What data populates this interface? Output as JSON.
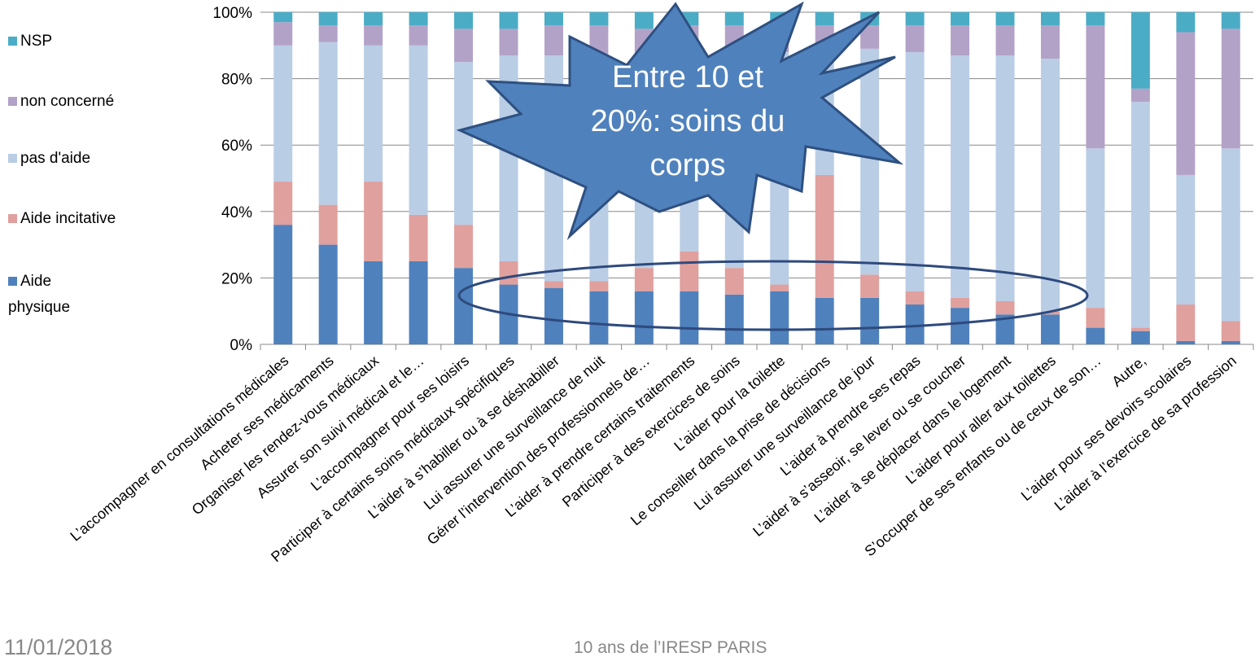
{
  "chart_data": {
    "type": "stacked_bar",
    "categories": [
      "L’accompagner en consultations médicales",
      "Acheter  ses médicaments",
      "Organiser les rendez-vous médicaux",
      "Assurer son suivi médical et le…",
      "L’accompagner pour ses loisirs",
      "Participer  à certains soins médicaux spécifiques",
      "L’aider à s’habiller ou à se déshabiller",
      "Lui assurer une surveillance de nuit",
      "Gérer l’intervention  des professionnels de…",
      "L’aider à prendre  certains traitements",
      "Participer  à des exercices de soins",
      "L’aider pour la toilette",
      "Le conseiller dans la prise de décisions",
      "Lui assurer une surveillance de jour",
      "L’aider à prendre  ses repas",
      "L’aider à s’asseoir, se lever ou se coucher",
      "L’aider à se déplacer dans le logement",
      "L’aider pour aller aux toilettes",
      "S’occuper de ses enfants ou de ceux de son…",
      "Autre,",
      "L’aider pour ses devoirs scolaires",
      "L’aider à l’exercice  de sa profession"
    ],
    "series": [
      {
        "name": "Aide physique",
        "color": "#4f81bd",
        "values": [
          36,
          30,
          25,
          25,
          23,
          18,
          17,
          16,
          16,
          16,
          15,
          16,
          14,
          14,
          12,
          11,
          9,
          9,
          5,
          4,
          1,
          1
        ]
      },
      {
        "name": "Aide incitative",
        "color": "#e0a09e",
        "values": [
          13,
          12,
          24,
          14,
          13,
          7,
          2,
          3,
          7,
          12,
          8,
          2,
          37,
          7,
          4,
          3,
          4,
          1,
          6,
          1,
          11,
          6
        ]
      },
      {
        "name": "pas d'aide",
        "color": "#b9cde5",
        "values": [
          41,
          49,
          41,
          51,
          49,
          62,
          68,
          68,
          64,
          60,
          65,
          70,
          37,
          68,
          72,
          73,
          74,
          76,
          48,
          68,
          39,
          52
        ]
      },
      {
        "name": "non concerné",
        "color": "#b3a2c7",
        "values": [
          7,
          5,
          6,
          6,
          10,
          8,
          9,
          9,
          8,
          8,
          8,
          8,
          8,
          7,
          8,
          9,
          9,
          10,
          37,
          4,
          43,
          36
        ]
      },
      {
        "name": "NSP",
        "color": "#4bacc6",
        "values": [
          3,
          4,
          4,
          4,
          5,
          5,
          4,
          4,
          5,
          4,
          4,
          4,
          4,
          4,
          4,
          4,
          4,
          4,
          4,
          23,
          6,
          5
        ]
      }
    ],
    "ylim": [
      0,
      100
    ],
    "yticks": [
      {
        "value": 0,
        "label": "0%"
      },
      {
        "value": 20,
        "label": "20%"
      },
      {
        "value": 40,
        "label": "40%"
      },
      {
        "value": 60,
        "label": "60%"
      },
      {
        "value": 80,
        "label": "80%"
      },
      {
        "value": 100,
        "label": "100%"
      }
    ],
    "grid": true,
    "legend": "left",
    "annotations": [
      "Entre 10 et 20%: soins du corps"
    ]
  },
  "footer": {
    "date": "11/01/2018",
    "title": "10 ans de l’IRESP PARIS"
  }
}
